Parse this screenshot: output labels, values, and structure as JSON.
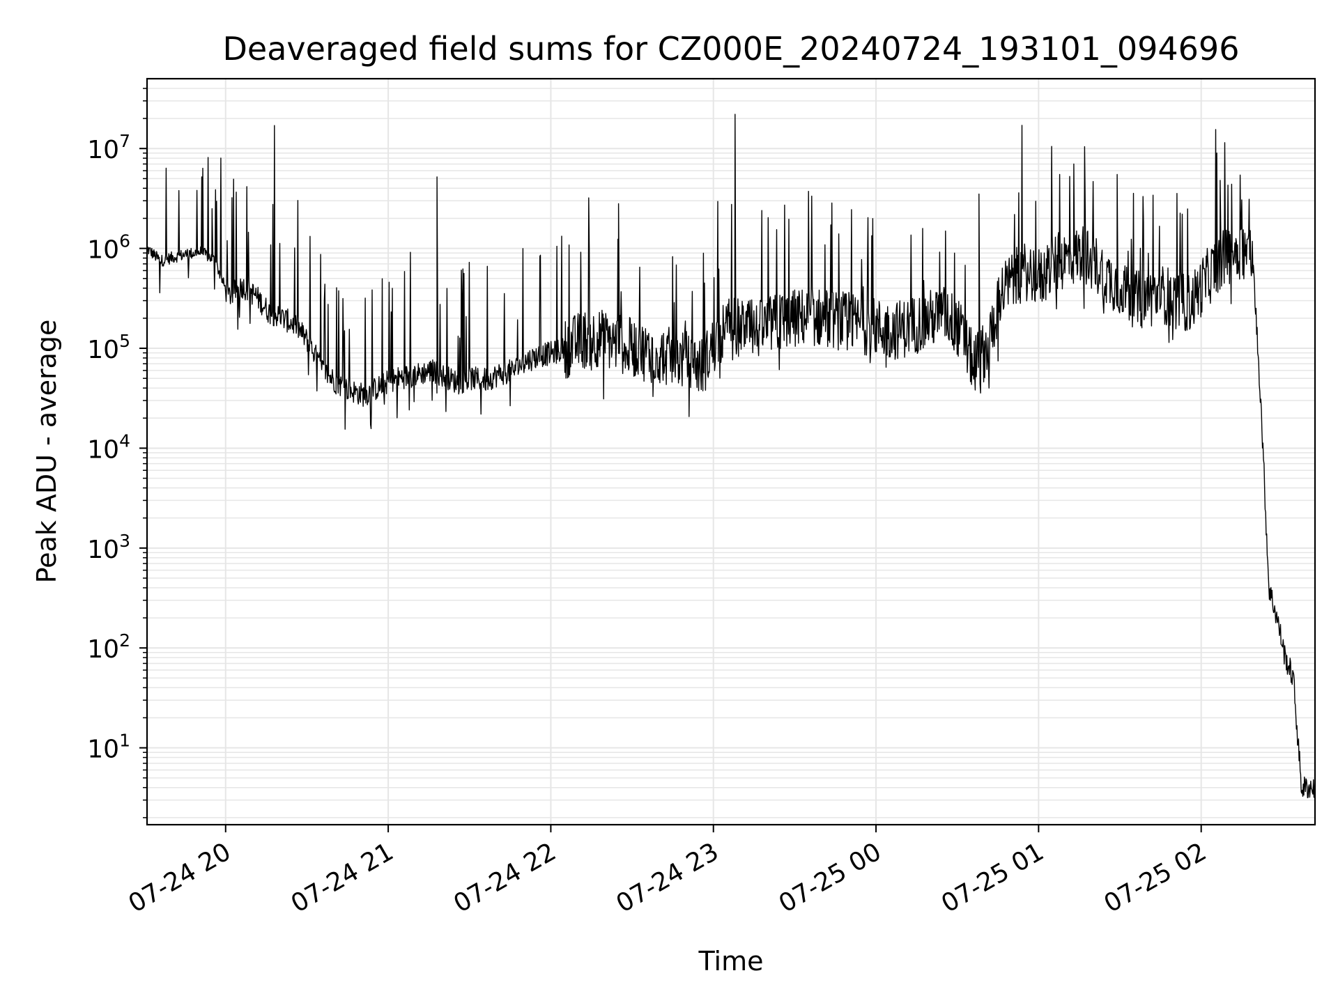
{
  "chart_data": {
    "type": "line",
    "title": "Deaveraged field sums for CZ000E_20240724_193101_094696",
    "xlabel": "Time",
    "ylabel": "Peak ADU - average",
    "x_axis": {
      "type": "time",
      "range": [
        "2024-07-24 19:31",
        "2024-07-25 02:42"
      ],
      "ticks": [
        {
          "t": "2024-07-24 20:00",
          "label": "07-24 20"
        },
        {
          "t": "2024-07-24 21:00",
          "label": "07-24 21"
        },
        {
          "t": "2024-07-24 22:00",
          "label": "07-24 22"
        },
        {
          "t": "2024-07-24 23:00",
          "label": "07-24 23"
        },
        {
          "t": "2024-07-25 00:00",
          "label": "07-25 00"
        },
        {
          "t": "2024-07-25 01:00",
          "label": "07-25 01"
        },
        {
          "t": "2024-07-25 02:00",
          "label": "07-25 02"
        }
      ]
    },
    "y_axis": {
      "scale": "log",
      "range": [
        1.7,
        50000000
      ],
      "ticks": [
        {
          "value": 10,
          "base": "10",
          "exp": "1"
        },
        {
          "value": 100,
          "base": "10",
          "exp": "2"
        },
        {
          "value": 1000,
          "base": "10",
          "exp": "3"
        },
        {
          "value": 10000,
          "base": "10",
          "exp": "4"
        },
        {
          "value": 100000,
          "base": "10",
          "exp": "5"
        },
        {
          "value": 1000000,
          "base": "10",
          "exp": "6"
        },
        {
          "value": 10000000,
          "base": "10",
          "exp": "7"
        }
      ]
    },
    "grid": true,
    "grid_minor": true,
    "line_color": "#000000",
    "grid_color": "#e6e6e6",
    "series": [
      {
        "name": "",
        "baseline_points": [
          [
            "2024-07-24 19:31",
            1000000
          ],
          [
            "2024-07-24 19:36",
            750000
          ],
          [
            "2024-07-24 19:41",
            820000
          ],
          [
            "2024-07-24 19:46",
            880000
          ],
          [
            "2024-07-24 19:51",
            920000
          ],
          [
            "2024-07-24 19:56",
            760000
          ],
          [
            "2024-07-24 20:01",
            330000
          ],
          [
            "2024-07-24 20:06",
            420000
          ],
          [
            "2024-07-24 20:11",
            340000
          ],
          [
            "2024-07-24 20:16",
            230000
          ],
          [
            "2024-07-24 20:21",
            200000
          ],
          [
            "2024-07-24 20:26",
            170000
          ],
          [
            "2024-07-24 20:31",
            110000
          ],
          [
            "2024-07-24 20:36",
            60000
          ],
          [
            "2024-07-24 20:41",
            45000
          ],
          [
            "2024-07-24 20:46",
            38000
          ],
          [
            "2024-07-24 20:51",
            34000
          ],
          [
            "2024-07-24 20:56",
            40000
          ],
          [
            "2024-07-24 21:01",
            48000
          ],
          [
            "2024-07-24 21:06",
            52000
          ],
          [
            "2024-07-24 21:11",
            55000
          ],
          [
            "2024-07-24 21:16",
            60000
          ],
          [
            "2024-07-24 21:21",
            52000
          ],
          [
            "2024-07-24 21:26",
            45000
          ],
          [
            "2024-07-24 21:31",
            50000
          ],
          [
            "2024-07-24 21:36",
            48000
          ],
          [
            "2024-07-24 21:41",
            55000
          ],
          [
            "2024-07-24 21:46",
            60000
          ],
          [
            "2024-07-24 21:51",
            75000
          ],
          [
            "2024-07-24 21:56",
            85000
          ],
          [
            "2024-07-24 22:01",
            90000
          ],
          [
            "2024-07-24 22:06",
            100000
          ],
          [
            "2024-07-24 22:11",
            120000
          ],
          [
            "2024-07-24 22:16",
            130000
          ],
          [
            "2024-07-24 22:21",
            120000
          ],
          [
            "2024-07-24 22:26",
            110000
          ],
          [
            "2024-07-24 22:31",
            100000
          ],
          [
            "2024-07-24 22:36",
            90000
          ],
          [
            "2024-07-24 22:41",
            85000
          ],
          [
            "2024-07-24 22:46",
            80000
          ],
          [
            "2024-07-24 22:51",
            75000
          ],
          [
            "2024-07-24 22:56",
            65000
          ],
          [
            "2024-07-24 23:01",
            120000
          ],
          [
            "2024-07-24 23:06",
            170000
          ],
          [
            "2024-07-24 23:11",
            160000
          ],
          [
            "2024-07-24 23:16",
            150000
          ],
          [
            "2024-07-24 23:21",
            170000
          ],
          [
            "2024-07-24 23:26",
            190000
          ],
          [
            "2024-07-24 23:31",
            200000
          ],
          [
            "2024-07-24 23:36",
            210000
          ],
          [
            "2024-07-24 23:41",
            200000
          ],
          [
            "2024-07-24 23:46",
            190000
          ],
          [
            "2024-07-24 23:51",
            180000
          ],
          [
            "2024-07-24 23:56",
            170000
          ],
          [
            "2024-07-25 00:01",
            160000
          ],
          [
            "2024-07-25 00:06",
            150000
          ],
          [
            "2024-07-25 00:11",
            160000
          ],
          [
            "2024-07-25 00:16",
            180000
          ],
          [
            "2024-07-25 00:21",
            200000
          ],
          [
            "2024-07-25 00:26",
            220000
          ],
          [
            "2024-07-25 00:31",
            150000
          ],
          [
            "2024-07-25 00:36",
            70000
          ],
          [
            "2024-07-25 00:41",
            100000
          ],
          [
            "2024-07-25 00:46",
            350000
          ],
          [
            "2024-07-25 00:51",
            500000
          ],
          [
            "2024-07-25 00:56",
            600000
          ],
          [
            "2024-07-25 01:01",
            500000
          ],
          [
            "2024-07-25 01:06",
            700000
          ],
          [
            "2024-07-25 01:11",
            800000
          ],
          [
            "2024-07-25 01:16",
            900000
          ],
          [
            "2024-07-25 01:21",
            700000
          ],
          [
            "2024-07-25 01:26",
            500000
          ],
          [
            "2024-07-25 01:31",
            400000
          ],
          [
            "2024-07-25 01:36",
            300000
          ],
          [
            "2024-07-25 01:41",
            320000
          ],
          [
            "2024-07-25 01:46",
            350000
          ],
          [
            "2024-07-25 01:51",
            300000
          ],
          [
            "2024-07-25 01:56",
            280000
          ],
          [
            "2024-07-25 02:01",
            450000
          ],
          [
            "2024-07-25 02:06",
            700000
          ],
          [
            "2024-07-25 02:11",
            900000
          ],
          [
            "2024-07-25 02:16",
            1000000
          ],
          [
            "2024-07-25 02:19",
            800000
          ],
          [
            "2024-07-25 02:22",
            30000
          ],
          [
            "2024-07-25 02:25",
            400
          ],
          [
            "2024-07-25 02:28",
            200
          ],
          [
            "2024-07-25 02:31",
            80
          ],
          [
            "2024-07-25 02:34",
            50
          ],
          [
            "2024-07-25 02:37",
            4
          ],
          [
            "2024-07-25 02:42",
            4
          ]
        ],
        "spike_peaks": [
          [
            "2024-07-24 19:55",
            2500000
          ],
          [
            "2024-07-24 20:18",
            17000000
          ],
          [
            "2024-07-24 21:18",
            5200000
          ],
          [
            "2024-07-24 22:25",
            2800000
          ],
          [
            "2024-07-24 23:08",
            22000000
          ],
          [
            "2024-07-25 00:38",
            3500000
          ],
          [
            "2024-07-25 01:13",
            7000000
          ],
          [
            "2024-07-25 01:29",
            5500000
          ],
          [
            "2024-07-25 02:07",
            4800000
          ]
        ]
      }
    ]
  }
}
